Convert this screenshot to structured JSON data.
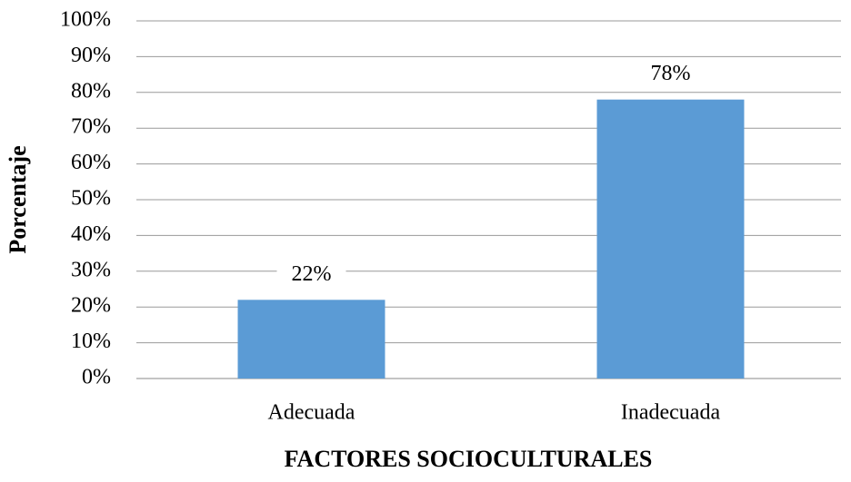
{
  "chart_data": {
    "type": "bar",
    "x_label": "FACTORES SOCIOCULTURALES",
    "y_label": "Porcentaje",
    "categories": [
      "Adecuada",
      "Inadecuada"
    ],
    "values": [
      22,
      78
    ],
    "value_labels": [
      "22%",
      "78%"
    ],
    "color": "#5b9bd5",
    "ylim": [
      0,
      100
    ],
    "yticks": [
      {
        "value": 0,
        "label": "0%"
      },
      {
        "value": 10,
        "label": "10%"
      },
      {
        "value": 20,
        "label": "20%"
      },
      {
        "value": 30,
        "label": "30%"
      },
      {
        "value": 40,
        "label": "40%"
      },
      {
        "value": 50,
        "label": "50%"
      },
      {
        "value": 60,
        "label": "60%"
      },
      {
        "value": 70,
        "label": "70%"
      },
      {
        "value": 80,
        "label": "80%"
      },
      {
        "value": 90,
        "label": "90%"
      },
      {
        "value": 100,
        "label": "100%"
      }
    ],
    "grid": true
  }
}
